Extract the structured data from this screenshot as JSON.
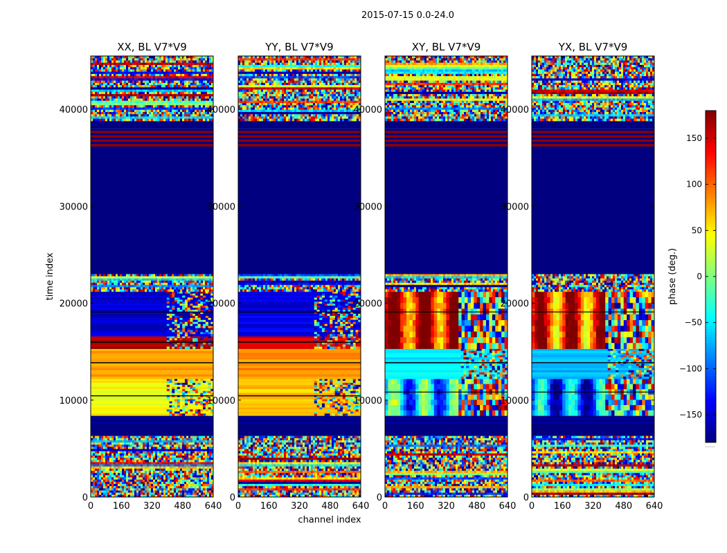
{
  "figure": {
    "suptitle": "2015-07-15 0.0-24.0"
  },
  "chart_data": {
    "type": "heatmap",
    "xlabel": "channel index",
    "ylabel": "time index",
    "xlim": [
      0,
      640
    ],
    "ylim": [
      0,
      45500
    ],
    "xticks": [
      0,
      160,
      320,
      480,
      640
    ],
    "yticks": [
      0,
      10000,
      20000,
      30000,
      40000
    ],
    "panels": [
      {
        "title": "XX, BL V7*V9",
        "bands": [
          {
            "from": 0,
            "to": 6300,
            "pattern": "noise"
          },
          {
            "from": 6300,
            "to": 7600,
            "pattern": "solid",
            "value": -180
          },
          {
            "from": 7600,
            "to": 8400,
            "pattern": "stripes",
            "value": -170
          },
          {
            "from": 8400,
            "to": 12200,
            "pattern": "smooth",
            "value": 45,
            "right_noise": true
          },
          {
            "from": 12200,
            "to": 15300,
            "pattern": "smooth",
            "value": 75
          },
          {
            "from": 15300,
            "to": 16600,
            "pattern": "smooth",
            "value": 165,
            "right_noise": true
          },
          {
            "from": 16600,
            "to": 21200,
            "pattern": "smooth",
            "value": -150,
            "right_noise": true
          },
          {
            "from": 21200,
            "to": 23000,
            "pattern": "noise"
          },
          {
            "from": 23000,
            "to": 36200,
            "pattern": "solid",
            "value": -180
          },
          {
            "from": 36200,
            "to": 38000,
            "pattern": "stripes",
            "value": 175
          },
          {
            "from": 38000,
            "to": 38800,
            "pattern": "solid",
            "value": -180
          },
          {
            "from": 38800,
            "to": 45500,
            "pattern": "noise"
          }
        ]
      },
      {
        "title": "YY, BL V7*V9",
        "bands": [
          {
            "from": 0,
            "to": 6300,
            "pattern": "noise"
          },
          {
            "from": 6300,
            "to": 7600,
            "pattern": "solid",
            "value": -180
          },
          {
            "from": 7600,
            "to": 8400,
            "pattern": "stripes",
            "value": -170
          },
          {
            "from": 8400,
            "to": 12200,
            "pattern": "smooth",
            "value": 65,
            "right_noise": true
          },
          {
            "from": 12200,
            "to": 15300,
            "pattern": "smooth",
            "value": 85
          },
          {
            "from": 15300,
            "to": 16600,
            "pattern": "smooth",
            "value": 150,
            "right_noise": true
          },
          {
            "from": 16600,
            "to": 21200,
            "pattern": "smooth",
            "value": -145,
            "right_noise": true
          },
          {
            "from": 21200,
            "to": 23000,
            "pattern": "noise"
          },
          {
            "from": 23000,
            "to": 36200,
            "pattern": "solid",
            "value": -180
          },
          {
            "from": 36200,
            "to": 38000,
            "pattern": "stripes",
            "value": 175
          },
          {
            "from": 38000,
            "to": 38800,
            "pattern": "solid",
            "value": -180
          },
          {
            "from": 38800,
            "to": 45500,
            "pattern": "noise"
          }
        ]
      },
      {
        "title": "XY, BL V7*V9",
        "bands": [
          {
            "from": 0,
            "to": 6300,
            "pattern": "noise"
          },
          {
            "from": 6300,
            "to": 7600,
            "pattern": "solid",
            "value": -180
          },
          {
            "from": 7600,
            "to": 8400,
            "pattern": "stripes",
            "value": -170
          },
          {
            "from": 8400,
            "to": 12200,
            "pattern": "banded",
            "value": -60
          },
          {
            "from": 12200,
            "to": 15300,
            "pattern": "smooth",
            "value": -50,
            "right_noise": true
          },
          {
            "from": 15300,
            "to": 21200,
            "pattern": "banded",
            "value": 140
          },
          {
            "from": 21200,
            "to": 23000,
            "pattern": "noise"
          },
          {
            "from": 23000,
            "to": 36200,
            "pattern": "solid",
            "value": -180
          },
          {
            "from": 36200,
            "to": 38000,
            "pattern": "stripes",
            "value": 175
          },
          {
            "from": 38000,
            "to": 38800,
            "pattern": "solid",
            "value": -180
          },
          {
            "from": 38800,
            "to": 45500,
            "pattern": "noise"
          }
        ]
      },
      {
        "title": "YX, BL V7*V9",
        "bands": [
          {
            "from": 0,
            "to": 6300,
            "pattern": "noise"
          },
          {
            "from": 6300,
            "to": 7600,
            "pattern": "solid",
            "value": -180
          },
          {
            "from": 7600,
            "to": 8400,
            "pattern": "stripes",
            "value": -170
          },
          {
            "from": 8400,
            "to": 12200,
            "pattern": "banded",
            "value": -100
          },
          {
            "from": 12200,
            "to": 15300,
            "pattern": "smooth",
            "value": -70,
            "right_noise": true
          },
          {
            "from": 15300,
            "to": 21200,
            "pattern": "banded",
            "value": 120
          },
          {
            "from": 21200,
            "to": 23000,
            "pattern": "noise"
          },
          {
            "from": 23000,
            "to": 36200,
            "pattern": "solid",
            "value": -180
          },
          {
            "from": 36200,
            "to": 38000,
            "pattern": "stripes",
            "value": 175
          },
          {
            "from": 38000,
            "to": 38800,
            "pattern": "solid",
            "value": -180
          },
          {
            "from": 38800,
            "to": 45500,
            "pattern": "noise"
          }
        ]
      }
    ],
    "colorbar": {
      "label": "phase (deg.)",
      "range": [
        -180,
        180
      ],
      "ticks": [
        -150,
        -100,
        -50,
        0,
        50,
        100,
        150
      ],
      "tick_labels": [
        "−150",
        "−100",
        "−50",
        "0",
        "50",
        "100",
        "150"
      ],
      "colormap": "jet",
      "extra_mark": "....."
    }
  }
}
